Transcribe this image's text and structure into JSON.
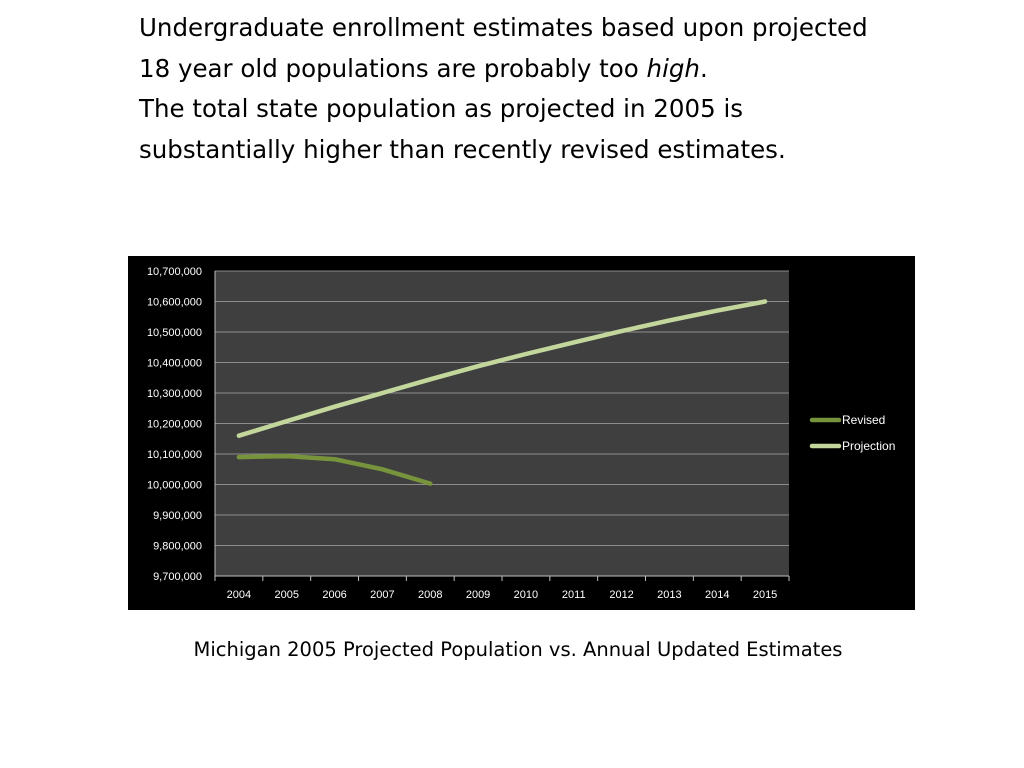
{
  "headline": {
    "line1": "Undergraduate enrollment estimates based upon projected 18 year old populations are probably too ",
    "line1_emphasis": "high",
    "line1_end": ".",
    "line2": "The total state population as projected in 2005 is substantially higher than recently revised estimates."
  },
  "caption": "Michigan 2005 Projected Population vs. Annual Updated Estimates",
  "chart_data": {
    "type": "line",
    "title": "",
    "xlabel": "",
    "ylabel": "",
    "categories": [
      "2004",
      "2005",
      "2006",
      "2007",
      "2008",
      "2009",
      "2010",
      "2011",
      "2012",
      "2013",
      "2014",
      "2015"
    ],
    "ylim": [
      9700000,
      10700000
    ],
    "ytick_labels": [
      "9,700,000",
      "9,800,000",
      "9,900,000",
      "10,000,000",
      "10,100,000",
      "10,200,000",
      "10,300,000",
      "10,400,000",
      "10,500,000",
      "10,600,000",
      "10,700,000"
    ],
    "grid": true,
    "legend_position": "right",
    "background": "#3f3f3f",
    "series": [
      {
        "name": "Revised",
        "color": "#77933c",
        "values": [
          10090000,
          10093000,
          10083000,
          10050000,
          10003000,
          null,
          null,
          null,
          null,
          null,
          null,
          null
        ]
      },
      {
        "name": "Projection",
        "color": "#c3d69b",
        "values": [
          10160000,
          10208000,
          10255000,
          10300000,
          10345000,
          10388000,
          10428000,
          10466000,
          10503000,
          10538000,
          10570000,
          10600000
        ]
      }
    ]
  }
}
